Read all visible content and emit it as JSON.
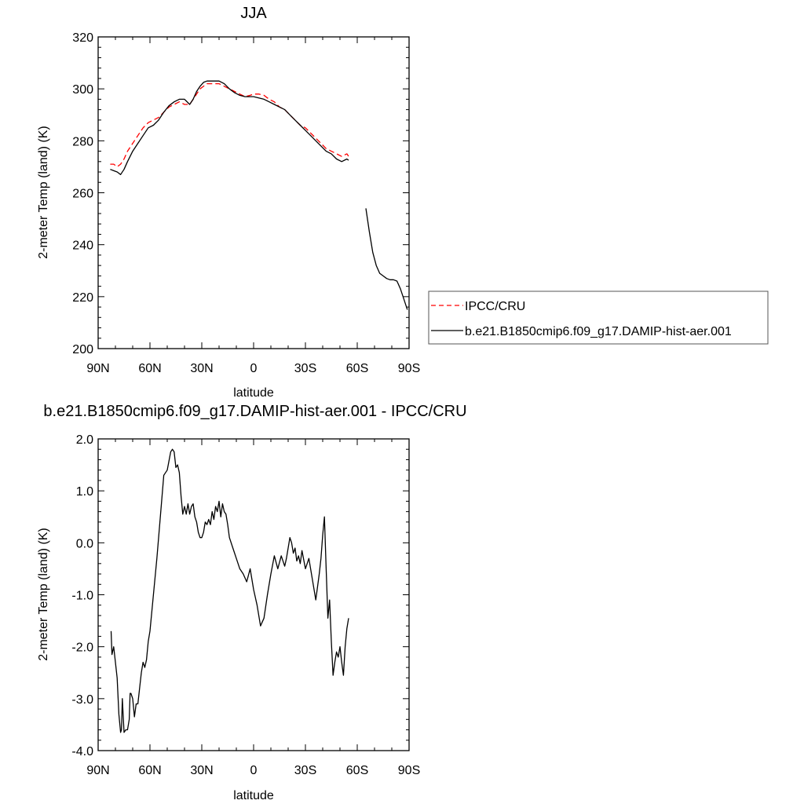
{
  "chart_data": [
    {
      "type": "line",
      "title": "JJA",
      "xlabel": "latitude",
      "ylabel": "2-meter Temp (land) (K)",
      "xlim": [
        90,
        -90
      ],
      "ylim": [
        200,
        320
      ],
      "x_tick_values": [
        90,
        60,
        30,
        0,
        -30,
        -60,
        -90
      ],
      "x_tick_labels": [
        "90N",
        "60N",
        "30N",
        "0",
        "30S",
        "60S",
        "90S"
      ],
      "y_tick_values": [
        200,
        220,
        240,
        260,
        280,
        300,
        320
      ],
      "y_tick_labels": [
        "200",
        "220",
        "240",
        "260",
        "280",
        "300",
        "320"
      ],
      "legend_placement": "right",
      "series": [
        {
          "name": "IPCC/CRU",
          "color": "#ff0000",
          "dash": "dashed",
          "x": [
            83,
            81,
            79,
            77,
            75,
            73,
            70,
            67,
            64,
            61,
            58,
            55,
            52,
            49,
            46,
            43,
            40,
            37,
            35,
            33,
            31,
            29,
            27,
            25,
            23,
            20,
            17,
            14,
            11,
            8,
            5,
            2,
            0,
            -3,
            -6,
            -9,
            -12,
            -15,
            -18,
            -21,
            -24,
            -27,
            -30,
            -33,
            -36,
            -39,
            -42,
            -45,
            -48,
            -51,
            -54,
            -55
          ],
          "y": [
            271,
            271,
            270,
            271,
            273,
            276,
            279,
            282,
            285,
            287,
            288,
            289,
            291,
            293,
            294,
            295,
            294,
            294,
            296,
            298,
            300,
            301,
            302,
            302,
            302,
            302,
            301,
            300,
            299,
            298,
            297,
            297.5,
            298,
            298,
            297.5,
            296,
            295,
            293,
            292,
            290,
            288,
            286,
            285,
            283,
            281,
            279,
            277,
            276,
            275,
            274,
            275,
            274
          ]
        },
        {
          "name": "b.e21.B1850cmip6.f09_g17.DAMIP-hist-aer.001",
          "color": "#000000",
          "dash": "solid",
          "x": [
            83,
            81,
            79,
            77,
            75,
            73,
            70,
            67,
            64,
            61,
            58,
            55,
            52,
            49,
            46,
            43,
            40,
            37,
            35,
            33,
            31,
            29,
            27,
            25,
            23,
            20,
            17,
            14,
            11,
            8,
            5,
            2,
            0,
            -3,
            -6,
            -9,
            -12,
            -15,
            -18,
            -21,
            -24,
            -27,
            -30,
            -33,
            -36,
            -39,
            -42,
            -45,
            -48,
            -51,
            -54,
            -55,
            null,
            -65,
            -67,
            -69,
            -71,
            -73,
            -75,
            -77,
            -79,
            -81,
            -83,
            -85,
            -87,
            -89
          ],
          "y": [
            269,
            268.5,
            268,
            267,
            269,
            272,
            276,
            279,
            282,
            285,
            286,
            288,
            291,
            293.5,
            295,
            296,
            296,
            294,
            296,
            299,
            301,
            302.5,
            303,
            303,
            303,
            303,
            302,
            300,
            298.5,
            297.5,
            297,
            297,
            297,
            296.5,
            296,
            295,
            294,
            293,
            292,
            290,
            288,
            286,
            284,
            282,
            280,
            278,
            276,
            275,
            273,
            272,
            273,
            272.5,
            null,
            254,
            245,
            237,
            232,
            229,
            228,
            227,
            226.5,
            226.5,
            226,
            223,
            219,
            215
          ]
        }
      ]
    },
    {
      "type": "line",
      "title": "b.e21.B1850cmip6.f09_g17.DAMIP-hist-aer.001 - IPCC/CRU",
      "xlabel": "latitude",
      "ylabel": "2-meter Temp (land) (K)",
      "xlim": [
        90,
        -90
      ],
      "ylim": [
        -4.0,
        2.0
      ],
      "x_tick_values": [
        90,
        60,
        30,
        0,
        -30,
        -60,
        -90
      ],
      "x_tick_labels": [
        "90N",
        "60N",
        "30N",
        "0",
        "30S",
        "60S",
        "90S"
      ],
      "y_tick_values": [
        -4.0,
        -3.0,
        -2.0,
        -1.0,
        0.0,
        1.0,
        2.0
      ],
      "y_tick_labels": [
        "-4.0",
        "-3.0",
        "-2.0",
        "-1.0",
        "0.0",
        "1.0",
        "2.0"
      ],
      "series": [
        {
          "color": "#000000",
          "dash": "solid",
          "x": [
            82.5,
            82,
            81,
            80,
            79,
            78,
            77,
            76.5,
            76,
            75,
            74,
            73,
            72,
            71.5,
            71,
            70,
            69,
            68,
            67,
            66,
            65,
            64,
            63,
            62,
            61,
            60,
            58,
            56,
            54,
            52,
            50,
            48,
            47,
            46,
            45,
            44,
            43,
            42,
            41,
            40,
            39,
            38,
            37,
            36,
            35,
            34,
            33,
            32,
            31,
            30,
            29,
            28,
            27,
            26,
            25,
            24,
            23,
            22,
            21,
            20,
            19,
            18,
            17,
            16,
            15,
            14,
            12,
            10,
            8,
            6,
            4,
            2,
            0,
            -2,
            -4,
            -6,
            -8,
            -10,
            -12,
            -14,
            -16,
            -18,
            -19,
            -20,
            -21,
            -22,
            -23,
            -24,
            -25,
            -26,
            -27,
            -28,
            -30,
            -32,
            -34,
            -36,
            -38,
            -39,
            -40,
            -41,
            -42,
            -43,
            -44,
            -45,
            -46,
            -47,
            -48,
            -49,
            -50,
            -51,
            -52,
            -53,
            -54,
            -55
          ],
          "y": [
            -1.7,
            -2.15,
            -2.0,
            -2.3,
            -2.6,
            -3.3,
            -3.65,
            -3.6,
            -3.0,
            -3.65,
            -3.6,
            -3.6,
            -3.4,
            -2.9,
            -2.9,
            -3.0,
            -3.35,
            -3.1,
            -3.1,
            -2.8,
            -2.5,
            -2.3,
            -2.4,
            -2.25,
            -1.9,
            -1.7,
            -1.0,
            -0.3,
            0.5,
            1.3,
            1.4,
            1.75,
            1.8,
            1.75,
            1.45,
            1.5,
            1.35,
            0.9,
            0.55,
            0.7,
            0.55,
            0.75,
            0.55,
            0.7,
            0.75,
            0.5,
            0.4,
            0.2,
            0.1,
            0.1,
            0.2,
            0.4,
            0.35,
            0.45,
            0.35,
            0.6,
            0.45,
            0.7,
            0.6,
            0.8,
            0.5,
            0.75,
            0.6,
            0.55,
            0.35,
            0.1,
            -0.1,
            -0.3,
            -0.5,
            -0.6,
            -0.75,
            -0.5,
            -0.9,
            -1.2,
            -1.6,
            -1.45,
            -1.0,
            -0.6,
            -0.25,
            -0.5,
            -0.25,
            -0.45,
            -0.3,
            -0.1,
            0.1,
            0.0,
            -0.2,
            -0.1,
            -0.35,
            -0.25,
            -0.4,
            -0.15,
            -0.5,
            -0.3,
            -0.7,
            -1.1,
            -0.6,
            -0.3,
            0.15,
            0.5,
            -0.5,
            -1.45,
            -1.1,
            -1.9,
            -2.55,
            -2.3,
            -2.1,
            -2.2,
            -2.0,
            -2.3,
            -2.55,
            -2.0,
            -1.65,
            -1.45
          ]
        }
      ]
    }
  ]
}
